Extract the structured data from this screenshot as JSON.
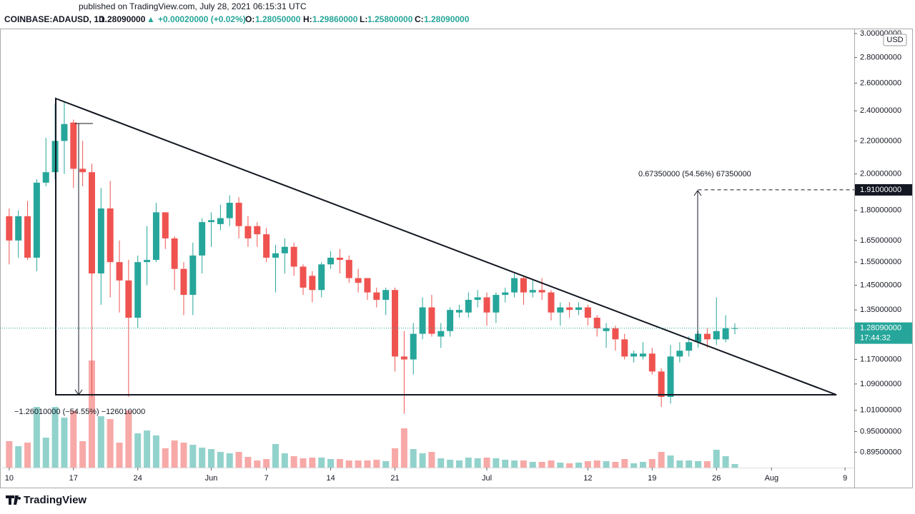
{
  "chart_data": {
    "type": "candlestick",
    "header": {
      "published": "published on TradingView.com, July 28, 2021 06:15:31 UTC",
      "symbol": "COINBASE:ADAUSD, 1D",
      "last": "1.28090000",
      "arrow": "▲",
      "change": "+0.00020000 (+0.02%)",
      "o_label": "O:",
      "o": "1.28050000",
      "h_label": "H:",
      "h": "1.29860000",
      "l_label": "L:",
      "l": "1.25800000",
      "c_label": "C:",
      "c": "1.28090000"
    },
    "currency": "USD",
    "brand": "TradingView",
    "x": [
      "2021-05-10",
      "2021-05-11",
      "2021-05-12",
      "2021-05-13",
      "2021-05-14",
      "2021-05-15",
      "2021-05-16",
      "2021-05-17",
      "2021-05-18",
      "2021-05-19",
      "2021-05-20",
      "2021-05-21",
      "2021-05-22",
      "2021-05-23",
      "2021-05-24",
      "2021-05-25",
      "2021-05-26",
      "2021-05-27",
      "2021-05-28",
      "2021-05-29",
      "2021-05-30",
      "2021-05-31",
      "2021-06-01",
      "2021-06-02",
      "2021-06-03",
      "2021-06-04",
      "2021-06-05",
      "2021-06-06",
      "2021-06-07",
      "2021-06-08",
      "2021-06-09",
      "2021-06-10",
      "2021-06-11",
      "2021-06-12",
      "2021-06-13",
      "2021-06-14",
      "2021-06-15",
      "2021-06-16",
      "2021-06-17",
      "2021-06-18",
      "2021-06-19",
      "2021-06-20",
      "2021-06-21",
      "2021-06-22",
      "2021-06-23",
      "2021-06-24",
      "2021-06-25",
      "2021-06-26",
      "2021-06-27",
      "2021-06-28",
      "2021-06-29",
      "2021-06-30",
      "2021-07-01",
      "2021-07-02",
      "2021-07-03",
      "2021-07-04",
      "2021-07-05",
      "2021-07-06",
      "2021-07-07",
      "2021-07-08",
      "2021-07-09",
      "2021-07-10",
      "2021-07-11",
      "2021-07-12",
      "2021-07-13",
      "2021-07-14",
      "2021-07-15",
      "2021-07-16",
      "2021-07-17",
      "2021-07-18",
      "2021-07-19",
      "2021-07-20",
      "2021-07-21",
      "2021-07-22",
      "2021-07-23",
      "2021-07-24",
      "2021-07-25",
      "2021-07-26",
      "2021-07-27",
      "2021-07-28"
    ],
    "open": [
      1.77,
      1.65,
      1.77,
      1.57,
      1.95,
      2.01,
      2.2,
      2.32,
      2.03,
      2.01,
      1.5,
      1.81,
      1.55,
      1.47,
      1.32,
      1.55,
      1.56,
      1.79,
      1.66,
      1.52,
      1.41,
      1.58,
      1.74,
      1.73,
      1.76,
      1.84,
      1.72,
      1.72,
      1.68,
      1.57,
      1.59,
      1.62,
      1.53,
      1.49,
      1.43,
      1.54,
      1.57,
      1.56,
      1.48,
      1.48,
      1.42,
      1.39,
      1.43,
      1.18,
      1.17,
      1.26,
      1.36,
      1.25,
      1.27,
      1.34,
      1.34,
      1.39,
      1.4,
      1.34,
      1.41,
      1.42,
      1.48,
      1.42,
      1.43,
      1.42,
      1.34,
      1.36,
      1.35,
      1.36,
      1.32,
      1.27,
      1.28,
      1.24,
      1.18,
      1.18,
      1.19,
      1.13,
      1.05,
      1.18,
      1.2,
      1.23,
      1.26,
      1.24,
      1.24,
      1.2805
    ],
    "high": [
      1.81,
      1.8,
      1.85,
      1.97,
      2.22,
      2.45,
      2.46,
      2.34,
      2.2,
      2.06,
      1.92,
      1.96,
      1.65,
      1.56,
      1.58,
      1.72,
      1.84,
      1.79,
      1.67,
      1.55,
      1.64,
      1.76,
      1.79,
      1.83,
      1.88,
      1.87,
      1.77,
      1.74,
      1.71,
      1.63,
      1.66,
      1.64,
      1.54,
      1.51,
      1.55,
      1.6,
      1.61,
      1.58,
      1.52,
      1.48,
      1.44,
      1.44,
      1.44,
      1.27,
      1.3,
      1.4,
      1.41,
      1.3,
      1.36,
      1.37,
      1.42,
      1.43,
      1.42,
      1.42,
      1.44,
      1.5,
      1.49,
      1.47,
      1.48,
      1.43,
      1.38,
      1.38,
      1.38,
      1.37,
      1.33,
      1.3,
      1.29,
      1.26,
      1.2,
      1.23,
      1.21,
      1.14,
      1.22,
      1.23,
      1.25,
      1.27,
      1.28,
      1.4,
      1.33,
      1.2986
    ],
    "low": [
      1.54,
      1.57,
      1.56,
      1.51,
      1.93,
      1.97,
      2.0,
      1.92,
      1.93,
      1.05,
      1.37,
      1.4,
      1.34,
      1.05,
      1.28,
      1.45,
      1.55,
      1.61,
      1.43,
      1.33,
      1.33,
      1.5,
      1.62,
      1.7,
      1.72,
      1.66,
      1.62,
      1.62,
      1.55,
      1.42,
      1.5,
      1.49,
      1.41,
      1.38,
      1.4,
      1.52,
      1.5,
      1.46,
      1.42,
      1.39,
      1.36,
      1.33,
      1.13,
      1.0,
      1.12,
      1.24,
      1.25,
      1.21,
      1.25,
      1.32,
      1.32,
      1.36,
      1.29,
      1.3,
      1.38,
      1.4,
      1.37,
      1.4,
      1.39,
      1.31,
      1.29,
      1.32,
      1.33,
      1.29,
      1.25,
      1.21,
      1.2,
      1.17,
      1.16,
      1.17,
      1.12,
      1.02,
      1.03,
      1.16,
      1.18,
      1.21,
      1.21,
      1.22,
      1.23,
      1.258
    ],
    "close": [
      1.65,
      1.77,
      1.57,
      1.95,
      2.01,
      2.2,
      2.31,
      2.03,
      2.01,
      1.5,
      1.81,
      1.55,
      1.47,
      1.32,
      1.55,
      1.56,
      1.79,
      1.66,
      1.52,
      1.41,
      1.58,
      1.74,
      1.75,
      1.76,
      1.84,
      1.72,
      1.66,
      1.68,
      1.57,
      1.59,
      1.62,
      1.53,
      1.44,
      1.43,
      1.54,
      1.57,
      1.56,
      1.48,
      1.46,
      1.42,
      1.39,
      1.43,
      1.18,
      1.17,
      1.26,
      1.36,
      1.26,
      1.27,
      1.35,
      1.35,
      1.39,
      1.4,
      1.34,
      1.41,
      1.42,
      1.48,
      1.42,
      1.43,
      1.42,
      1.34,
      1.36,
      1.35,
      1.36,
      1.32,
      1.28,
      1.28,
      1.24,
      1.18,
      1.19,
      1.19,
      1.13,
      1.05,
      1.18,
      1.2,
      1.23,
      1.26,
      1.24,
      1.27,
      1.28,
      1.2809
    ],
    "volume": [
      74,
      60,
      70,
      170,
      84,
      170,
      140,
      160,
      74,
      300,
      144,
      136,
      70,
      160,
      96,
      104,
      90,
      54,
      76,
      70,
      64,
      56,
      52,
      44,
      40,
      44,
      30,
      20,
      24,
      66,
      40,
      32,
      26,
      28,
      28,
      24,
      24,
      20,
      20,
      20,
      22,
      18,
      54,
      110,
      52,
      40,
      44,
      26,
      22,
      20,
      28,
      26,
      28,
      26,
      22,
      20,
      20,
      16,
      16,
      20,
      14,
      12,
      14,
      18,
      20,
      18,
      16,
      24,
      12,
      16,
      24,
      44,
      34,
      20,
      20,
      18,
      18,
      50,
      32,
      10
    ],
    "volume_lim": [
      0,
      300
    ],
    "log_scale": true,
    "up_color": "#26a69a",
    "down_color": "#ef5350",
    "xlim": [
      "2021-05-09",
      "2021-08-10"
    ],
    "xticks": [
      {
        "value": "2021-05-10",
        "label": "10"
      },
      {
        "value": "2021-05-17",
        "label": "17"
      },
      {
        "value": "2021-05-24",
        "label": "24"
      },
      {
        "value": "2021-06-01",
        "label": "Jun"
      },
      {
        "value": "2021-06-07",
        "label": "7"
      },
      {
        "value": "2021-06-14",
        "label": "14"
      },
      {
        "value": "2021-06-21",
        "label": "21"
      },
      {
        "value": "2021-07-01",
        "label": "Jul"
      },
      {
        "value": "2021-07-12",
        "label": "12"
      },
      {
        "value": "2021-07-19",
        "label": "19"
      },
      {
        "value": "2021-07-26",
        "label": "26"
      },
      {
        "value": "2021-08-01",
        "label": "Aug"
      },
      {
        "value": "2021-08-09",
        "label": "9"
      }
    ],
    "ylim": [
      0.856,
      3.044
    ],
    "yticks": [
      {
        "value": 3,
        "label": "3.00000000"
      },
      {
        "value": 2.8,
        "label": "2.80000000"
      },
      {
        "value": 2.6,
        "label": "2.60000000"
      },
      {
        "value": 2.4,
        "label": "2.40000000"
      },
      {
        "value": 2.2,
        "label": "2.20000000"
      },
      {
        "value": 2,
        "label": "2.00000000"
      },
      {
        "value": 1.8,
        "label": "1.80000000"
      },
      {
        "value": 1.65,
        "label": "1.65000000"
      },
      {
        "value": 1.55,
        "label": "1.55000000"
      },
      {
        "value": 1.45,
        "label": "1.45000000"
      },
      {
        "value": 1.35,
        "label": "1.35000000"
      },
      {
        "value": 1.17,
        "label": "1.17000000"
      },
      {
        "value": 1.09,
        "label": "1.09000000"
      },
      {
        "value": 1.01,
        "label": "1.01000000"
      },
      {
        "value": 0.95,
        "label": "0.95000000"
      },
      {
        "value": 0.895,
        "label": "0.89500000"
      }
    ],
    "last_price": {
      "value": 1.2809,
      "label": "1.28090000",
      "countdown": "17:44:32"
    },
    "target": {
      "value": 1.91,
      "label": "1.91000000"
    },
    "annotations": [
      "0.67350000 (54.56%) 67350000",
      "−1.26010000 (−54.55%) −126010000"
    ]
  }
}
